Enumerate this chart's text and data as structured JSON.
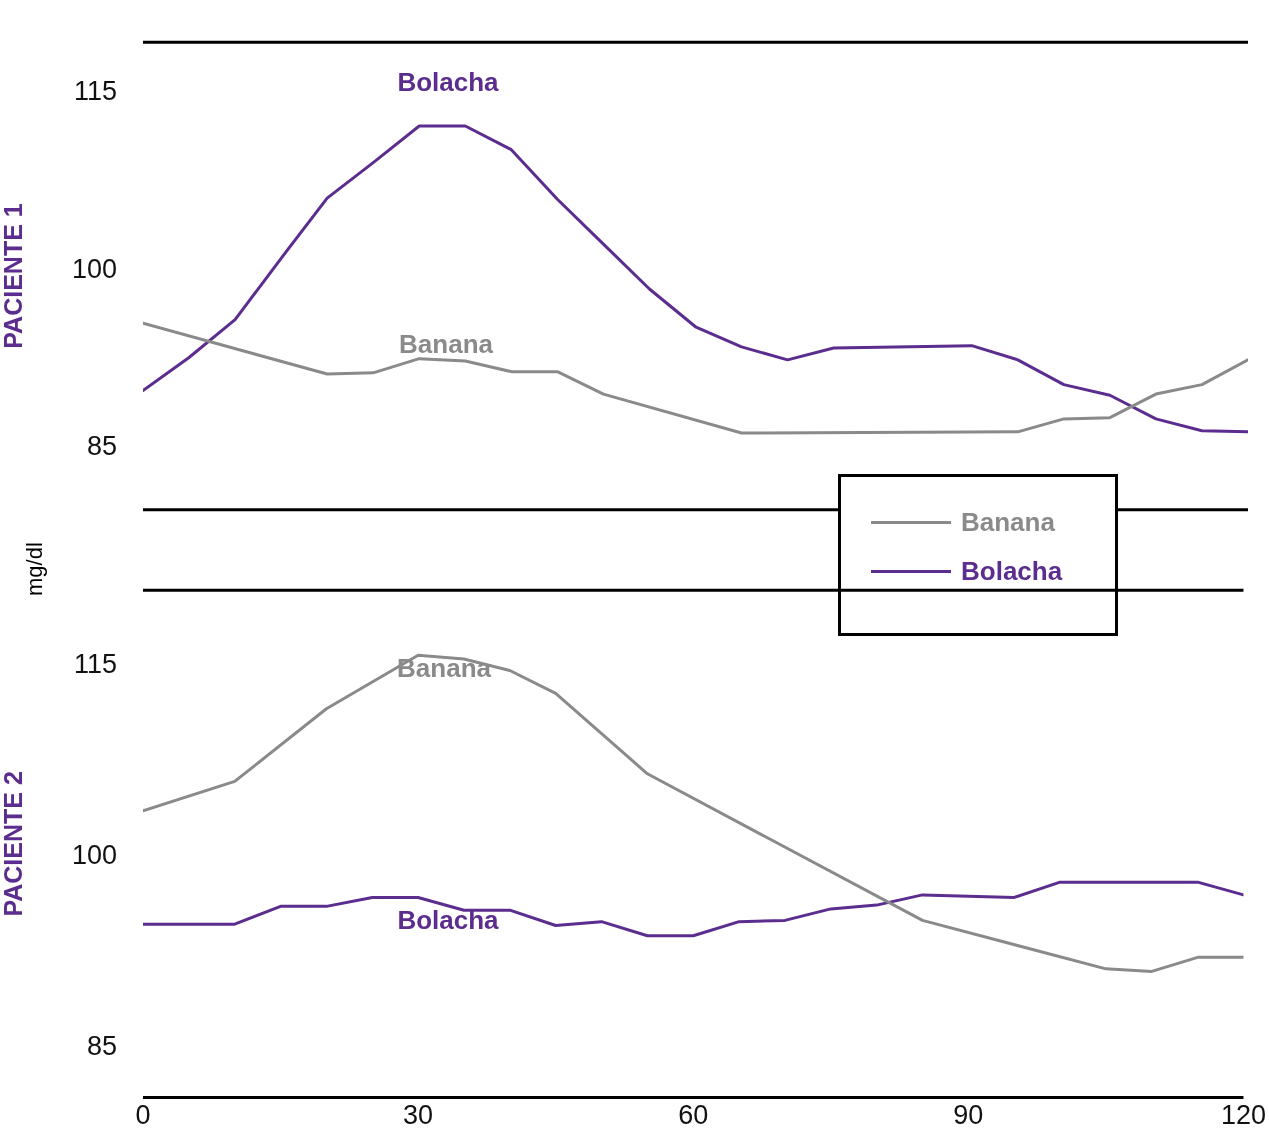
{
  "chart_data": [
    {
      "type": "line",
      "ylabel": "PACIENTE 1",
      "xlim": [
        0,
        120
      ],
      "xticks": [
        0,
        30,
        60,
        90,
        120
      ],
      "ylim": [
        79.7,
        119.3
      ],
      "yticks": [
        85,
        100,
        115
      ],
      "tick_labels": "y",
      "grid": false,
      "legend": "bottom right",
      "marker": "none",
      "series": [
        {
          "name": "Banana",
          "color": "#8a8a8a",
          "x": [
            0,
            20,
            25,
            30,
            35,
            40,
            45,
            50,
            65,
            95,
            100,
            105,
            110,
            115,
            120
          ],
          "values": [
            95.5,
            91.2,
            91.3,
            92.5,
            92.3,
            91.4,
            91.4,
            89.5,
            86.2,
            86.3,
            87.4,
            87.5,
            89.5,
            90.3,
            92.4
          ]
        },
        {
          "name": "Bolacha",
          "color": "#5b2d8e",
          "x": [
            0,
            5,
            10,
            15,
            20,
            25,
            30,
            35,
            40,
            45,
            50,
            55,
            60,
            65,
            70,
            75,
            90,
            95,
            100,
            105,
            110,
            115,
            120
          ],
          "values": [
            89.8,
            92.6,
            95.8,
            101.0,
            106.1,
            109.1,
            112.2,
            112.2,
            110.2,
            106.0,
            102.2,
            98.4,
            95.2,
            93.5,
            92.4,
            93.4,
            93.6,
            92.4,
            90.3,
            89.4,
            87.4,
            86.4,
            86.3
          ]
        }
      ],
      "annotations": [
        "Banana",
        "Bolacha",
        "mg/dl"
      ]
    },
    {
      "type": "line",
      "ylabel": "PACIENTE 2",
      "xlim": [
        0,
        120
      ],
      "xticks": [
        0,
        30,
        60,
        90,
        120
      ],
      "ylim": [
        81.1,
        120.9
      ],
      "yticks": [
        85,
        100,
        115
      ],
      "grid": false,
      "marker": "none",
      "series": [
        {
          "color": "#8a8a8a",
          "x": [
            0,
            10,
            20,
            30,
            35,
            40,
            45,
            55,
            85,
            105,
            110,
            115,
            120
          ],
          "values": [
            103.6,
            105.9,
            111.6,
            115.8,
            115.5,
            114.6,
            112.8,
            106.5,
            95.0,
            91.2,
            91.0,
            92.1,
            92.1
          ]
        },
        {
          "color": "#5b2d8e",
          "x": [
            0,
            10,
            15,
            20,
            25,
            30,
            35,
            40,
            45,
            50,
            55,
            60,
            65,
            70,
            75,
            80,
            85,
            95,
            100,
            115,
            120
          ],
          "values": [
            94.7,
            94.7,
            96.1,
            96.1,
            96.8,
            96.8,
            95.8,
            95.8,
            94.6,
            94.9,
            93.8,
            93.8,
            94.9,
            95.0,
            95.9,
            96.2,
            97.0,
            96.8,
            98.0,
            98.0,
            97.0
          ]
        }
      ],
      "annotations": [
        "Banana",
        "Bolacha"
      ]
    }
  ]
}
